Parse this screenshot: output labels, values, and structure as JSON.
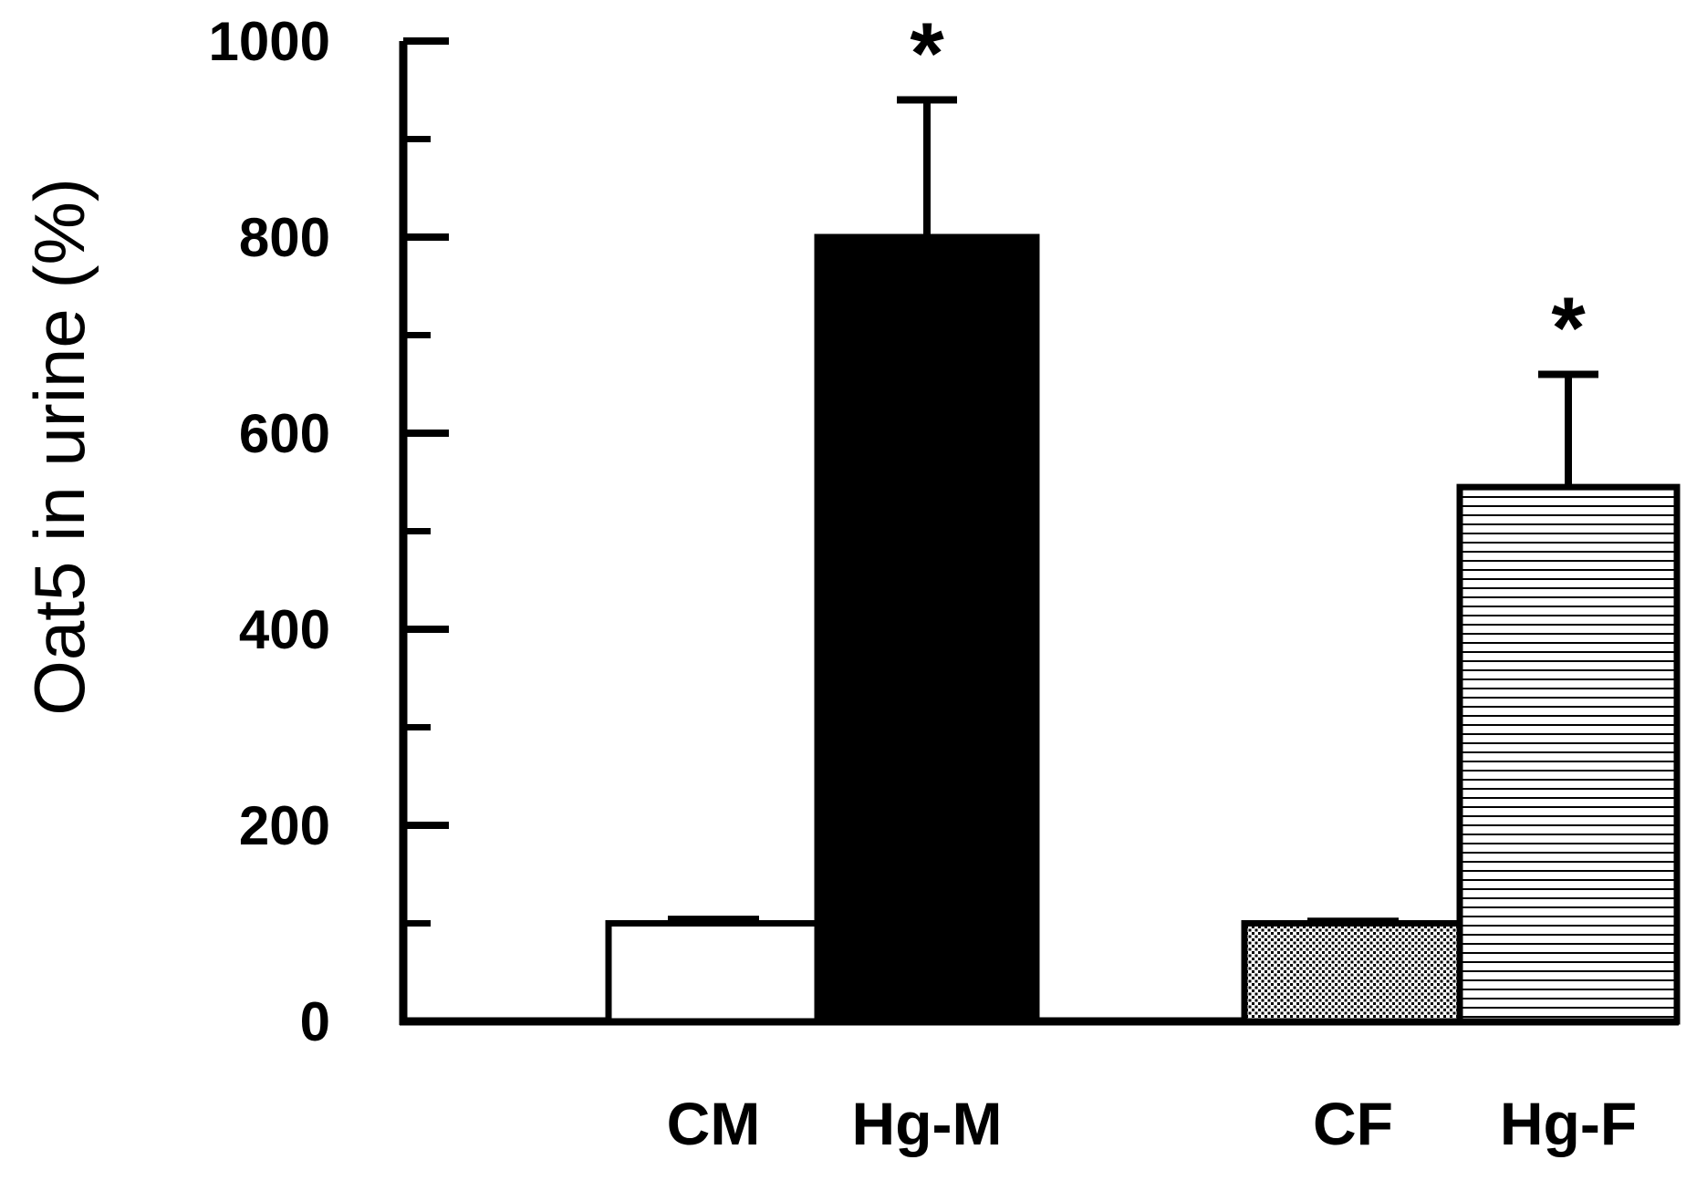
{
  "chart_data": {
    "type": "bar",
    "title": "",
    "xlabel": "",
    "ylabel": "Oat5 in urine (%)",
    "ylim": [
      0,
      1000
    ],
    "yticks_major": [
      0,
      200,
      400,
      600,
      800,
      1000
    ],
    "yticks_minor": [
      100,
      300,
      500,
      700,
      900
    ],
    "grid": false,
    "legend": "none",
    "categories": [
      "CM",
      "Hg-M",
      "CF",
      "Hg-F"
    ],
    "values": [
      100,
      800,
      100,
      545
    ],
    "errors": [
      5,
      140,
      3,
      115
    ],
    "annotations": [
      "",
      "*",
      "",
      "*"
    ],
    "fills": [
      "white",
      "solid-black",
      "dense-dots",
      "horizontal-lines"
    ],
    "colors": {
      "stroke": "#000000",
      "background": "#ffffff"
    }
  }
}
